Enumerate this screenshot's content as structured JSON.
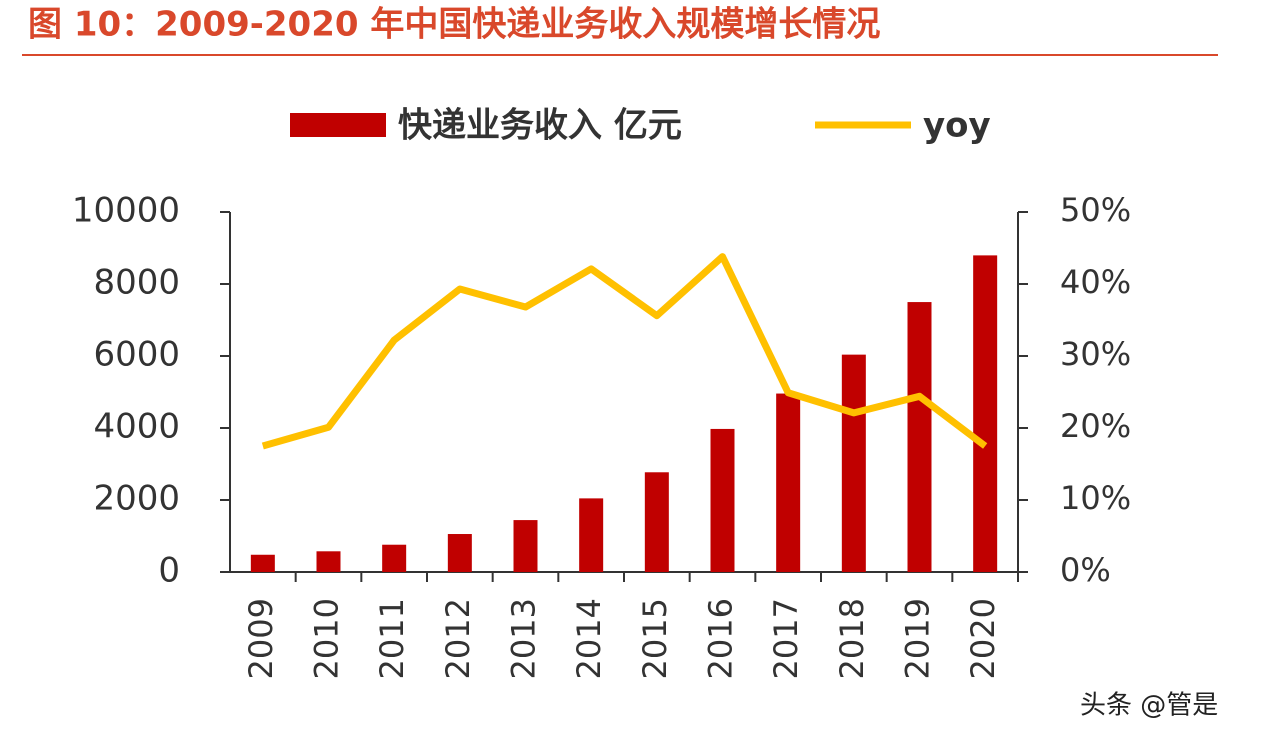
{
  "chart_data": {
    "type": "bar-line",
    "title": "图 10：2009-2020 年中国快递业务收入规模增长情况",
    "categories": [
      "2009",
      "2010",
      "2011",
      "2012",
      "2013",
      "2014",
      "2015",
      "2016",
      "2017",
      "2018",
      "2019",
      "2020"
    ],
    "series": [
      {
        "name": "快递业务收入 亿元",
        "color": "#c00000",
        "type": "bar",
        "values": [
          479,
          575,
          758,
          1055,
          1442,
          2045,
          2770,
          3974,
          4957,
          6038,
          7498,
          8795
        ]
      },
      {
        "name": "yoy",
        "color": "#ffc000",
        "type": "line",
        "axis": "y2",
        "values": [
          17.5,
          20.1,
          32.2,
          39.3,
          36.8,
          42.1,
          35.6,
          43.8,
          24.9,
          22.1,
          24.4,
          17.5
        ]
      }
    ],
    "ylim": [
      0,
      10000
    ],
    "yticks": [
      0,
      2000,
      4000,
      6000,
      8000,
      10000
    ],
    "y2lim": [
      0,
      50
    ],
    "y2ticks": [
      {
        "value": 0,
        "label": "0%"
      },
      {
        "value": 10,
        "label": "10%"
      },
      {
        "value": 20,
        "label": "20%"
      },
      {
        "value": 30,
        "label": "30%"
      },
      {
        "value": 40,
        "label": "40%"
      },
      {
        "value": 50,
        "label": "50%"
      }
    ],
    "watermark": "头条 @管是"
  }
}
